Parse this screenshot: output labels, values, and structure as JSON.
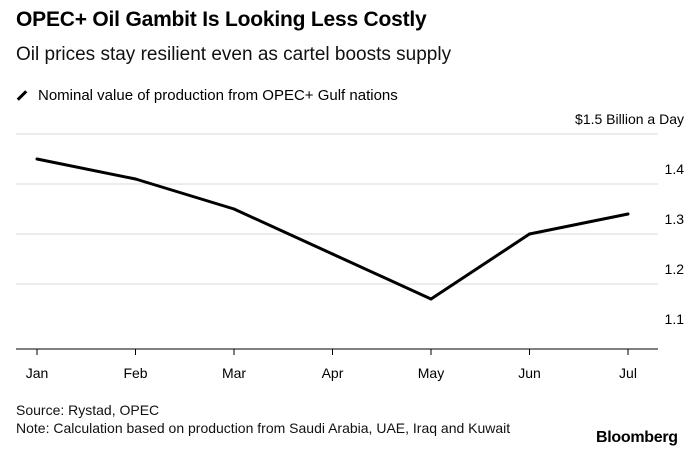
{
  "header": {
    "title": "OPEC+ Oil Gambit Is Looking Less Costly",
    "subtitle": "Oil prices stay resilient even as cartel boosts supply"
  },
  "legend": {
    "label": "Nominal value of production from OPEC+ Gulf nations"
  },
  "footer": {
    "source": "Source: Rystad, OPEC",
    "note": "Note: Calculation based on production from Saudi Arabia, UAE, Iraq and Kuwait",
    "brand": "Bloomberg"
  },
  "colors": {
    "line": "#000000",
    "grid": "#d9d9d9",
    "axis": "#000000",
    "text": "#000000"
  },
  "chart_data": {
    "type": "line",
    "categories": [
      "Jan",
      "Feb",
      "Mar",
      "Apr",
      "May",
      "Jun",
      "Jul"
    ],
    "series": [
      {
        "values": [
          1.45,
          1.41,
          1.35,
          1.26,
          1.17,
          1.3,
          1.34
        ]
      }
    ],
    "y_unit_label": "$1.5 Billion a Day",
    "y_ticks": [
      1.1,
      1.2,
      1.3,
      1.4
    ],
    "y_tick_labels": [
      "1.1",
      "1.2",
      "1.3",
      "1.4"
    ],
    "ylim": [
      1.07,
      1.5
    ],
    "grid": true,
    "y_axis_side": "right"
  }
}
